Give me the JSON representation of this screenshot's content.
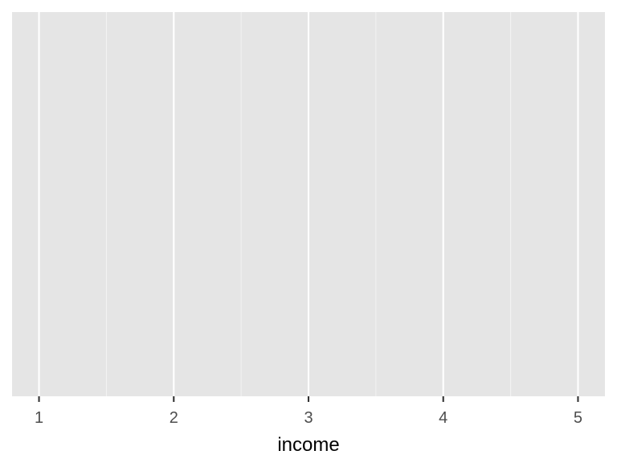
{
  "chart_data": {
    "type": "scatter",
    "xlabel": "income",
    "ylabel": "",
    "xlim": [
      0.8,
      5.2
    ],
    "x_ticks": [
      1,
      2,
      3,
      4,
      5
    ],
    "x_tick_labels": [
      "1",
      "2",
      "3",
      "4",
      "5"
    ],
    "y_ticks": [],
    "series": [],
    "grid": true,
    "legend": "none",
    "colors": {
      "panel_background": "#e5e5e5",
      "grid_major": "#ffffff",
      "grid_minor": "#f2f2f2",
      "tick_text": "#4d4d4d",
      "axis_title": "#000000"
    }
  }
}
